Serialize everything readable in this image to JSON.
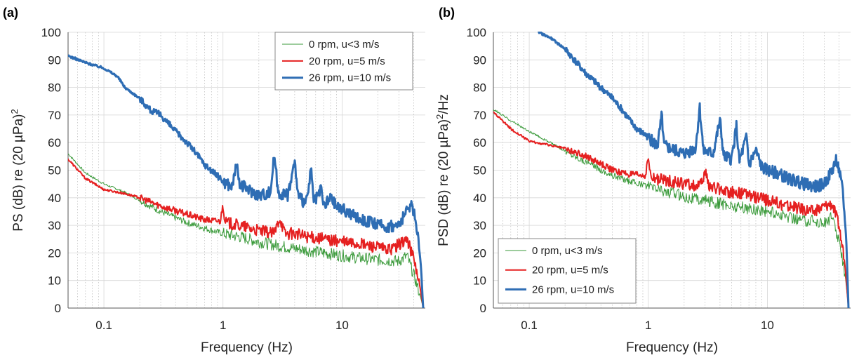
{
  "chart_data": [
    {
      "panel_label": "(a)",
      "type": "line",
      "xlabel": "Frequency (Hz)",
      "ylabel_base": "PS (dB) re (20 µPa)",
      "ylabel_sup": "2",
      "ylabel_tail": "",
      "x_scale": "log",
      "xlim": [
        0.05,
        50
      ],
      "ylim": [
        0,
        100
      ],
      "x_ticks": [
        0.1,
        1,
        10
      ],
      "x_tick_labels": [
        "0.1",
        "1",
        "10"
      ],
      "y_ticks": [
        0,
        10,
        20,
        30,
        40,
        50,
        60,
        70,
        80,
        90,
        100
      ],
      "y_tick_labels": [
        "0",
        "10",
        "20",
        "30",
        "40",
        "50",
        "60",
        "70",
        "80",
        "90",
        "100"
      ],
      "grid": true,
      "legend_position": "top-right",
      "series": [
        {
          "name": "0 rpm, u<3 m/s",
          "color": "#3a9a3a",
          "points": [
            [
              0.05,
              56
            ],
            [
              0.07,
              49
            ],
            [
              0.1,
              45
            ],
            [
              0.15,
              42
            ],
            [
              0.2,
              39
            ],
            [
              0.3,
              35
            ],
            [
              0.5,
              31
            ],
            [
              0.7,
              29
            ],
            [
              1,
              27
            ],
            [
              1.5,
              25.5
            ],
            [
              2,
              24
            ],
            [
              3,
              22.5
            ],
            [
              5,
              21
            ],
            [
              7,
              20
            ],
            [
              10,
              19
            ],
            [
              15,
              18
            ],
            [
              20,
              17.5
            ],
            [
              30,
              17
            ],
            [
              35,
              19
            ],
            [
              40,
              12
            ],
            [
              45,
              5
            ],
            [
              48,
              0
            ]
          ]
        },
        {
          "name": "20 rpm, u=5 m/s",
          "color": "#e52020",
          "points": [
            [
              0.05,
              54
            ],
            [
              0.07,
              47
            ],
            [
              0.1,
              43
            ],
            [
              0.15,
              41.5
            ],
            [
              0.2,
              40
            ],
            [
              0.3,
              37
            ],
            [
              0.5,
              34
            ],
            [
              0.7,
              32
            ],
            [
              0.95,
              31.5
            ],
            [
              1,
              38
            ],
            [
              1.05,
              31
            ],
            [
              1.5,
              29.5
            ],
            [
              2,
              28
            ],
            [
              2.7,
              27
            ],
            [
              3,
              33
            ],
            [
              3.3,
              27
            ],
            [
              4,
              27
            ],
            [
              5,
              26
            ],
            [
              7,
              25
            ],
            [
              10,
              24
            ],
            [
              15,
              23
            ],
            [
              20,
              22
            ],
            [
              25,
              21
            ],
            [
              30,
              23
            ],
            [
              35,
              25
            ],
            [
              40,
              18
            ],
            [
              45,
              8
            ],
            [
              48,
              0
            ]
          ]
        },
        {
          "name": "26 rpm, u=10 m/s",
          "color": "#2e6db4",
          "points": [
            [
              0.05,
              91.5
            ],
            [
              0.07,
              89
            ],
            [
              0.1,
              87
            ],
            [
              0.13,
              84
            ],
            [
              0.15,
              80
            ],
            [
              0.2,
              76
            ],
            [
              0.25,
              71.5
            ],
            [
              0.3,
              70
            ],
            [
              0.4,
              64
            ],
            [
              0.5,
              60
            ],
            [
              0.6,
              56
            ],
            [
              0.7,
              52
            ],
            [
              0.8,
              50
            ],
            [
              1,
              46
            ],
            [
              1.1,
              45
            ],
            [
              1.2,
              44
            ],
            [
              1.3,
              53.5
            ],
            [
              1.35,
              45
            ],
            [
              1.5,
              44
            ],
            [
              2,
              41
            ],
            [
              2.5,
              42
            ],
            [
              2.7,
              56
            ],
            [
              2.9,
              42
            ],
            [
              3.5,
              41
            ],
            [
              4,
              53
            ],
            [
              4.3,
              40
            ],
            [
              5,
              38
            ],
            [
              5.5,
              50
            ],
            [
              5.8,
              38
            ],
            [
              6.7,
              43
            ],
            [
              7,
              37
            ],
            [
              8,
              40
            ],
            [
              9,
              37
            ],
            [
              10,
              36
            ],
            [
              12,
              34
            ],
            [
              15,
              32
            ],
            [
              20,
              30
            ],
            [
              25,
              29.5
            ],
            [
              30,
              30
            ],
            [
              35,
              35
            ],
            [
              38,
              38
            ],
            [
              40,
              35
            ],
            [
              43,
              28
            ],
            [
              46,
              15
            ],
            [
              48,
              0
            ]
          ]
        }
      ],
      "peaks": [
        [
          1.3,
          54
        ],
        [
          2.7,
          57
        ],
        [
          4,
          53
        ],
        [
          5.5,
          50
        ],
        [
          6.7,
          44
        ],
        [
          8,
          40
        ]
      ]
    },
    {
      "panel_label": "(b)",
      "type": "line",
      "xlabel": "Frequency (Hz)",
      "ylabel_base": "PSD (dB) re (20 µPa)",
      "ylabel_sup": "2",
      "ylabel_tail": "/Hz",
      "x_scale": "log",
      "xlim": [
        0.05,
        50
      ],
      "ylim": [
        0,
        100
      ],
      "x_ticks": [
        0.1,
        1,
        10
      ],
      "x_tick_labels": [
        "0.1",
        "1",
        "10"
      ],
      "y_ticks": [
        0,
        10,
        20,
        30,
        40,
        50,
        60,
        70,
        80,
        90,
        100
      ],
      "y_tick_labels": [
        "0",
        "10",
        "20",
        "30",
        "40",
        "50",
        "60",
        "70",
        "80",
        "90",
        "100"
      ],
      "grid": true,
      "legend_position": "bottom-left",
      "series": [
        {
          "name": "0 rpm, u<3 m/s",
          "color": "#3a9a3a",
          "points": [
            [
              0.05,
              72
            ],
            [
              0.07,
              68
            ],
            [
              0.1,
              64
            ],
            [
              0.15,
              60
            ],
            [
              0.2,
              57
            ],
            [
              0.3,
              53
            ],
            [
              0.5,
              48
            ],
            [
              0.7,
              46
            ],
            [
              1,
              44
            ],
            [
              1.5,
              42
            ],
            [
              2,
              40.5
            ],
            [
              3,
              39
            ],
            [
              5,
              37
            ],
            [
              7,
              36
            ],
            [
              10,
              35
            ],
            [
              15,
              33
            ],
            [
              20,
              32
            ],
            [
              30,
              31
            ],
            [
              35,
              33
            ],
            [
              40,
              24
            ],
            [
              45,
              12
            ],
            [
              48,
              0
            ]
          ]
        },
        {
          "name": "20 rpm, u=5 m/s",
          "color": "#e52020",
          "points": [
            [
              0.05,
              71
            ],
            [
              0.07,
              65
            ],
            [
              0.1,
              60.5
            ],
            [
              0.15,
              59
            ],
            [
              0.2,
              58
            ],
            [
              0.3,
              55
            ],
            [
              0.5,
              50
            ],
            [
              0.7,
              48.5
            ],
            [
              0.95,
              48
            ],
            [
              1,
              55
            ],
            [
              1.05,
              47
            ],
            [
              1.5,
              46
            ],
            [
              2,
              45
            ],
            [
              2.7,
              44
            ],
            [
              3,
              49
            ],
            [
              3.3,
              44
            ],
            [
              4,
              43
            ],
            [
              5,
              42
            ],
            [
              7,
              41
            ],
            [
              10,
              39
            ],
            [
              15,
              37
            ],
            [
              20,
              36
            ],
            [
              25,
              35
            ],
            [
              30,
              37
            ],
            [
              35,
              38
            ],
            [
              40,
              30
            ],
            [
              45,
              15
            ],
            [
              48,
              0
            ]
          ]
        },
        {
          "name": "26 rpm, u=10 m/s",
          "color": "#2e6db4",
          "points": [
            [
              0.12,
              100
            ],
            [
              0.15,
              98
            ],
            [
              0.2,
              94
            ],
            [
              0.25,
              89
            ],
            [
              0.3,
              85
            ],
            [
              0.4,
              80
            ],
            [
              0.5,
              76
            ],
            [
              0.6,
              72
            ],
            [
              0.7,
              68
            ],
            [
              0.8,
              65
            ],
            [
              1,
              62
            ],
            [
              1.1,
              60
            ],
            [
              1.2,
              59
            ],
            [
              1.3,
              70
            ],
            [
              1.35,
              59
            ],
            [
              1.5,
              58
            ],
            [
              2,
              56
            ],
            [
              2.5,
              58
            ],
            [
              2.7,
              73
            ],
            [
              2.9,
              57
            ],
            [
              3.5,
              56
            ],
            [
              4,
              68
            ],
            [
              4.3,
              55
            ],
            [
              5,
              54
            ],
            [
              5.5,
              66
            ],
            [
              5.8,
              53
            ],
            [
              6.7,
              62
            ],
            [
              7,
              52
            ],
            [
              8,
              57
            ],
            [
              9,
              51
            ],
            [
              10,
              50
            ],
            [
              12,
              49
            ],
            [
              15,
              47
            ],
            [
              20,
              45
            ],
            [
              25,
              44
            ],
            [
              30,
              45
            ],
            [
              35,
              50
            ],
            [
              38,
              54
            ],
            [
              40,
              50
            ],
            [
              43,
              42
            ],
            [
              46,
              25
            ],
            [
              48,
              0
            ]
          ]
        }
      ],
      "peaks": [
        [
          1.3,
          71
        ],
        [
          2.7,
          73
        ],
        [
          4,
          70
        ],
        [
          5.5,
          66
        ],
        [
          6.7,
          63
        ],
        [
          8,
          57
        ]
      ]
    }
  ]
}
